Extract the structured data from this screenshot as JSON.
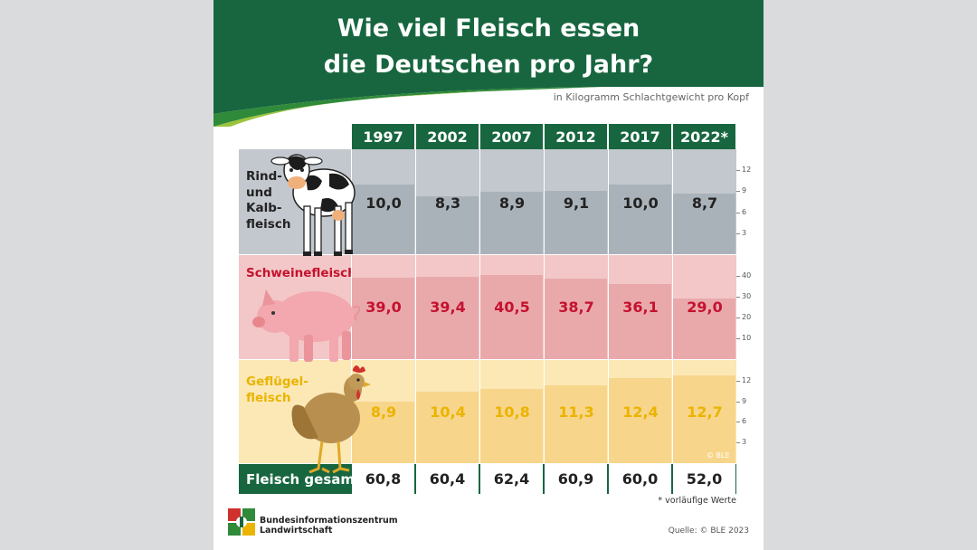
{
  "title_line1": "Wie viel Fleisch essen",
  "title_line2": "die Deutschen pro Jahr?",
  "subtitle": "in Kilogramm Schlachtgewicht pro Kopf",
  "total_label": "Fleisch gesamt",
  "footnote": "* vorläufige Werte",
  "source": "Quelle: © BLE 2023",
  "org_line1": "Bundesinformationszentrum",
  "org_line2": "Landwirtschaft",
  "watermark": "© BLE",
  "colors": {
    "green": "#17663f",
    "beef_bg": "#c2c8cd",
    "beef_bar": "#aab2b9",
    "beef_text": "#222222",
    "pork_bg": "#f3c7c7",
    "pork_bar": "#e9a9ab",
    "pork_text": "#c4122f",
    "poultry_bg": "#fbe8b5",
    "poultry_bar": "#f7d58a",
    "poultry_text": "#eab400"
  },
  "chart_data": {
    "type": "bar",
    "categories": [
      "1997",
      "2002",
      "2007",
      "2012",
      "2017",
      "2022*"
    ],
    "series": [
      {
        "name": "Rind- und Kalbfleisch",
        "label_lines": [
          "Rind-",
          "und",
          "Kalb-",
          "fleisch"
        ],
        "values": [
          10.0,
          8.3,
          8.9,
          9.1,
          10.0,
          8.7
        ],
        "value_labels": [
          "10,0",
          "8,3",
          "8,9",
          "9,1",
          "10,0",
          "8,7"
        ],
        "ticks": [
          "3",
          "6",
          "9",
          "12"
        ],
        "ylim": [
          0,
          15
        ]
      },
      {
        "name": "Schweinefleisch",
        "label_lines": [
          "Schweinefleisch"
        ],
        "values": [
          39.0,
          39.4,
          40.5,
          38.7,
          36.1,
          29.0
        ],
        "value_labels": [
          "39,0",
          "39,4",
          "40,5",
          "38,7",
          "36,1",
          "29,0"
        ],
        "ticks": [
          "10",
          "20",
          "30",
          "40"
        ],
        "ylim": [
          0,
          50
        ]
      },
      {
        "name": "Geflügelfleisch",
        "label_lines": [
          "Geflügel-",
          "fleisch"
        ],
        "values": [
          8.9,
          10.4,
          10.8,
          11.3,
          12.4,
          12.7
        ],
        "value_labels": [
          "8,9",
          "10,4",
          "10,8",
          "11,3",
          "12,4",
          "12,7"
        ],
        "ticks": [
          "3",
          "6",
          "9",
          "12"
        ],
        "ylim": [
          0,
          15
        ]
      }
    ],
    "totals": [
      60.8,
      60.4,
      62.4,
      60.9,
      60.0,
      52.0
    ],
    "total_labels": [
      "60,8",
      "60,4",
      "62,4",
      "60,9",
      "60,0",
      "52,0"
    ]
  }
}
